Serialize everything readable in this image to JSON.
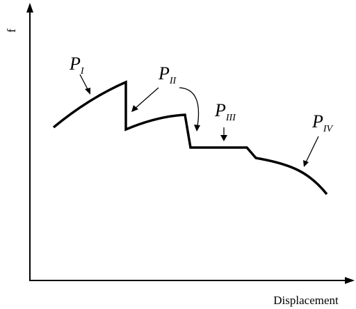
{
  "diagram": {
    "y_axis_label": "f",
    "x_axis_label": "Displacement",
    "phases": [
      {
        "base": "P",
        "sub": "I"
      },
      {
        "base": "P",
        "sub": "II"
      },
      {
        "base": "P",
        "sub": "III"
      },
      {
        "base": "P",
        "sub": "IV"
      }
    ]
  }
}
